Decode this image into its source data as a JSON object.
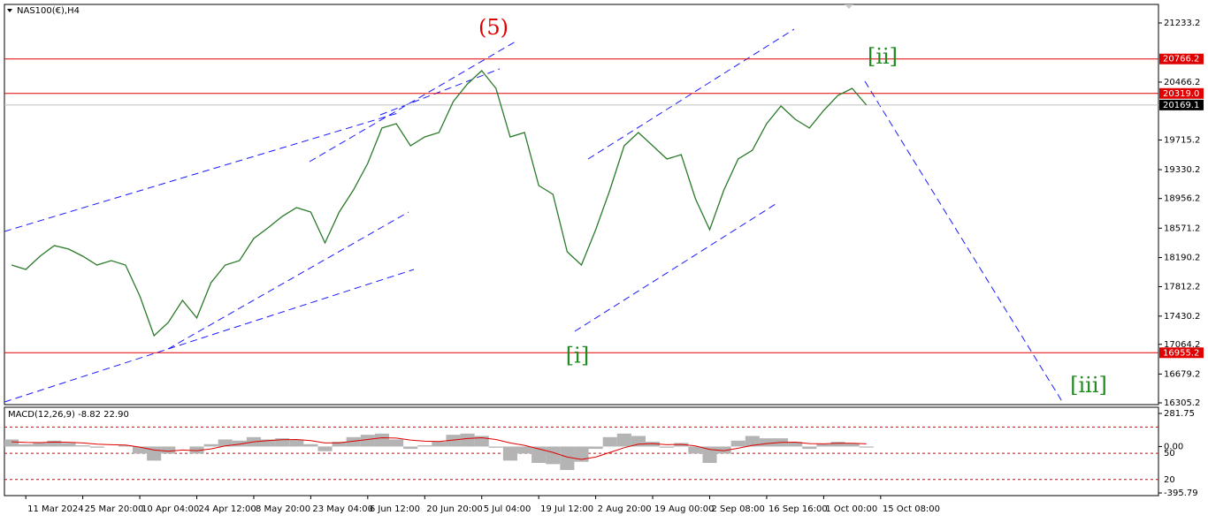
{
  "chart_data": [
    {
      "type": "line",
      "title": "NAS100(€),H4",
      "color": "#2a7a2a",
      "annotations": [
        {
          "text": "(5)",
          "color": "#e00000",
          "price": 21160
        },
        {
          "text": "[ii]",
          "color": "#1f8a1f",
          "price": 20780
        },
        {
          "text": "[i]",
          "color": "#1f8a1f",
          "price": 16900
        },
        {
          "text": "[iii]",
          "color": "#1f8a1f",
          "price": 16520
        }
      ],
      "values": [
        18093,
        18036,
        18208,
        18345,
        18300,
        18208,
        18093,
        18150,
        18093,
        17692,
        17176,
        17348,
        17635,
        17406,
        17864,
        18093,
        18150,
        18437,
        18575,
        18724,
        18838,
        18781,
        18379,
        18781,
        19067,
        19411,
        19870,
        19927,
        19640,
        19755,
        19812,
        20213,
        20442,
        20614,
        20385,
        19755,
        19812,
        19125,
        19010,
        18265,
        18093,
        18552,
        19067,
        19640,
        19812,
        19640,
        19468,
        19525,
        18953,
        18552,
        19067,
        19468,
        19583,
        19927,
        20156,
        19984,
        19870,
        20099,
        20294,
        20385,
        20169.1
      ],
      "xlim": [
        -0.5,
        80.5
      ],
      "xticks": [
        {
          "value": 1,
          "label": "11 Mar 2024"
        },
        {
          "value": 5,
          "label": "25 Mar 20:00"
        },
        {
          "value": 9,
          "label": "10 Apr 04:00"
        },
        {
          "value": 13,
          "label": "24 Apr 12:00"
        },
        {
          "value": 17,
          "label": "8 May 20:00"
        },
        {
          "value": 21,
          "label": "23 May 04:00"
        },
        {
          "value": 25,
          "label": "6 Jun 12:00"
        },
        {
          "value": 29,
          "label": "20 Jun 20:00"
        },
        {
          "value": 33,
          "label": "5 Jul 04:00"
        },
        {
          "value": 37,
          "label": "19 Jul 12:00"
        },
        {
          "value": 41,
          "label": "2 Aug 20:00"
        },
        {
          "value": 45,
          "label": "19 Aug 00:00"
        },
        {
          "value": 49,
          "label": "2 Sep 08:00"
        },
        {
          "value": 53,
          "label": "16 Sep 16:00"
        },
        {
          "value": 57,
          "label": "1 Oct 00:00"
        },
        {
          "value": 61,
          "label": "15 Oct 08:00"
        }
      ],
      "ylim": [
        16305.2,
        21233.2
      ],
      "yticks": [
        21233.2,
        20466.2,
        19715.2,
        19330.2,
        18956.2,
        18571.2,
        18190.2,
        17812.2,
        17430.2,
        17064.2,
        16679.2,
        16305.2
      ],
      "levels": [
        20766.2,
        {
          "value": 20319.0,
          "label": "20319.0"
        },
        16955.2
      ],
      "level_color": "#e00000",
      "current_price": 20169.1
    },
    {
      "type": "macd",
      "title": "MACD(12,26,9) -8.82 22.90",
      "color": "#b4b4b4",
      "signal_color": "#e00000",
      "values": [
        60,
        20,
        30,
        50,
        30,
        10,
        -10,
        0,
        10,
        -60,
        -120,
        -60,
        0,
        -60,
        20,
        60,
        50,
        80,
        60,
        70,
        60,
        20,
        -40,
        40,
        80,
        100,
        110,
        60,
        -20,
        10,
        40,
        100,
        110,
        90,
        -10,
        -120,
        -60,
        -140,
        -150,
        -200,
        -130,
        -20,
        80,
        110,
        90,
        40,
        -10,
        30,
        -60,
        -140,
        -60,
        50,
        90,
        70,
        70,
        40,
        -20,
        20,
        40,
        30,
        -9
      ],
      "signal": [
        40,
        35,
        33,
        38,
        36,
        30,
        20,
        15,
        12,
        -5,
        -30,
        -40,
        -30,
        -35,
        -20,
        5,
        20,
        40,
        50,
        58,
        60,
        50,
        30,
        32,
        45,
        60,
        75,
        72,
        55,
        45,
        43,
        55,
        68,
        75,
        60,
        30,
        10,
        -20,
        -50,
        -90,
        -110,
        -90,
        -50,
        -10,
        20,
        25,
        15,
        18,
        5,
        -25,
        -35,
        -15,
        10,
        25,
        35,
        37,
        25,
        23,
        27,
        28,
        23
      ],
      "ylim": [
        -395.79,
        281.75
      ],
      "yticks": [
        281.75,
        {
          "value": 0,
          "label": "0.00"
        },
        -395.79
      ],
      "levels": [
        {
          "value": 166
        },
        {
          "value": -58,
          "label": "50"
        },
        {
          "value": -281,
          "label": "20"
        }
      ]
    }
  ]
}
